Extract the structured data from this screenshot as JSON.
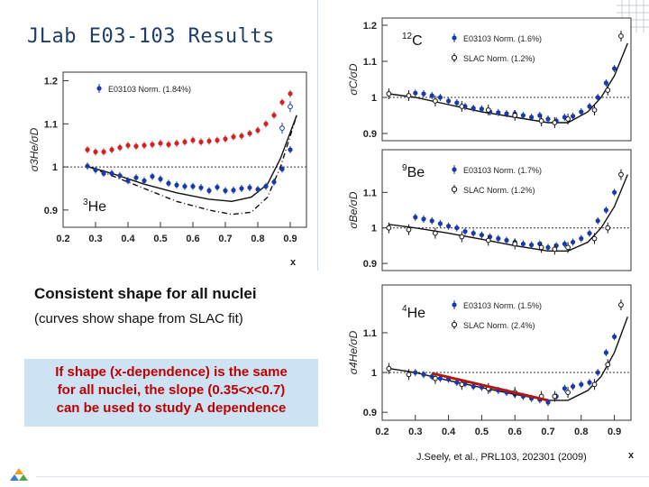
{
  "slide": {
    "title": "JLab E03-103 Results",
    "statement": "Consistent shape for all nuclei",
    "curve_note": "(curves show shape from SLAC fit)",
    "callout": "If shape (x-dependence) is the same\nfor all nuclei, the slope (0.35<x<0.7)\ncan be used to study A dependence",
    "citation": "J.Seely, et al., PRL103, 202301 (2009)",
    "colors": {
      "title": "#1f3d6b",
      "callout_bg": "#cde3f4",
      "callout_text": "#c00000",
      "red_points": "#d42020",
      "blue_points": "#1a3aa8",
      "slope_line": "#b01818"
    }
  },
  "chart_data": [
    {
      "type": "scatter",
      "nucleus_label": "3He",
      "ylabel": "σ3He/σD",
      "xlabel": "x",
      "xlim": [
        0.2,
        0.95
      ],
      "ylim": [
        0.86,
        1.22
      ],
      "xticks": [
        "0.2",
        "0.3",
        "0.4",
        "0.5",
        "0.6",
        "0.7",
        "0.8",
        "0.9"
      ],
      "yticks": [
        "0.9",
        "1",
        "1.1",
        "1.2"
      ],
      "reference_line": 1.0,
      "legend": [
        {
          "label": "E03103 Norm. (1.84%)",
          "marker": "filled",
          "color": "#1a3aa8"
        }
      ],
      "series": [
        {
          "name": "E03103 Norm. (1.84%)",
          "marker": "filled",
          "color": "#1a3aa8",
          "x": [
            0.275,
            0.3,
            0.325,
            0.35,
            0.375,
            0.4,
            0.425,
            0.45,
            0.475,
            0.5,
            0.525,
            0.55,
            0.575,
            0.6,
            0.625,
            0.65,
            0.675,
            0.7,
            0.725,
            0.75,
            0.775,
            0.8,
            0.825,
            0.85,
            0.875,
            0.9
          ],
          "y": [
            1.002,
            0.993,
            0.985,
            0.985,
            0.98,
            0.968,
            0.975,
            0.968,
            0.978,
            0.972,
            0.962,
            0.958,
            0.955,
            0.955,
            0.952,
            0.945,
            0.953,
            0.945,
            0.946,
            0.95,
            0.952,
            0.948,
            0.955,
            0.965,
            0.995,
            1.04
          ]
        },
        {
          "marker": "filled",
          "color": "#d42020",
          "x": [
            0.275,
            0.3,
            0.325,
            0.35,
            0.375,
            0.4,
            0.425,
            0.45,
            0.475,
            0.5,
            0.525,
            0.55,
            0.575,
            0.6,
            0.625,
            0.65,
            0.675,
            0.7,
            0.725,
            0.75,
            0.775,
            0.8,
            0.825,
            0.85,
            0.875,
            0.9
          ],
          "y": [
            1.04,
            1.035,
            1.035,
            1.04,
            1.045,
            1.05,
            1.048,
            1.05,
            1.052,
            1.055,
            1.052,
            1.055,
            1.058,
            1.062,
            1.058,
            1.06,
            1.062,
            1.065,
            1.07,
            1.072,
            1.078,
            1.085,
            1.1,
            1.12,
            1.15,
            1.17
          ]
        },
        {
          "marker": "open",
          "color": "#1a3aa8",
          "x": [
            0.875,
            0.9
          ],
          "y": [
            1.09,
            1.14
          ]
        }
      ],
      "curves": [
        {
          "style": "solid",
          "x": [
            0.28,
            0.35,
            0.45,
            0.55,
            0.65,
            0.72,
            0.78,
            0.83,
            0.87,
            0.92
          ],
          "y": [
            1.0,
            0.985,
            0.96,
            0.94,
            0.925,
            0.92,
            0.93,
            0.96,
            1.02,
            1.12
          ]
        },
        {
          "style": "dashdot",
          "x": [
            0.28,
            0.35,
            0.45,
            0.55,
            0.65,
            0.72,
            0.78,
            0.83,
            0.87,
            0.92
          ],
          "y": [
            1.0,
            0.98,
            0.95,
            0.92,
            0.9,
            0.89,
            0.895,
            0.93,
            1.0,
            1.12
          ]
        }
      ]
    },
    {
      "type": "scatter",
      "nucleus_label": "12C",
      "ylabel": "σC/σD",
      "xlim": [
        0.2,
        0.95
      ],
      "ylim": [
        0.88,
        1.22
      ],
      "yticks": [
        "0.9",
        "1",
        "1.1",
        "1.2"
      ],
      "reference_line": 1.0,
      "legend": [
        {
          "label": "E03103 Norm. (1.6%)",
          "marker": "filled",
          "color": "#1a3aa8"
        },
        {
          "label": "SLAC Norm. (1.2%)",
          "marker": "open",
          "color": "#111111"
        }
      ],
      "series": [
        {
          "name": "E03103 Norm. (1.6%)",
          "marker": "filled",
          "color": "#1a3aa8",
          "x": [
            0.3,
            0.325,
            0.35,
            0.375,
            0.4,
            0.425,
            0.45,
            0.475,
            0.5,
            0.525,
            0.55,
            0.575,
            0.6,
            0.625,
            0.65,
            0.675,
            0.7,
            0.725,
            0.75,
            0.775,
            0.8,
            0.825,
            0.85,
            0.875,
            0.9
          ],
          "y": [
            1.012,
            1.01,
            1.005,
            1.0,
            0.99,
            0.985,
            0.975,
            0.97,
            0.968,
            0.96,
            0.958,
            0.955,
            0.955,
            0.95,
            0.945,
            0.95,
            0.94,
            0.935,
            0.945,
            0.948,
            0.96,
            0.975,
            1.0,
            1.04,
            1.08
          ]
        },
        {
          "name": "SLAC Norm. (1.2%)",
          "marker": "open",
          "color": "#111111",
          "x": [
            0.22,
            0.28,
            0.36,
            0.44,
            0.52,
            0.6,
            0.68,
            0.72,
            0.76,
            0.84,
            0.88,
            0.92
          ],
          "y": [
            1.01,
            1.005,
            0.99,
            0.975,
            0.965,
            0.95,
            0.935,
            0.93,
            0.94,
            0.965,
            1.02,
            1.17
          ]
        }
      ],
      "curves": [
        {
          "style": "solid",
          "x": [
            0.22,
            0.3,
            0.4,
            0.5,
            0.6,
            0.7,
            0.76,
            0.82,
            0.86,
            0.9,
            0.94
          ],
          "y": [
            1.01,
            1.0,
            0.98,
            0.96,
            0.945,
            0.93,
            0.93,
            0.96,
            1.0,
            1.06,
            1.15
          ]
        }
      ]
    },
    {
      "type": "scatter",
      "nucleus_label": "9Be",
      "ylabel": "σBe/σD",
      "xlim": [
        0.2,
        0.95
      ],
      "ylim": [
        0.88,
        1.22
      ],
      "yticks": [
        "0.9",
        "1",
        "1.1"
      ],
      "reference_line": 1.0,
      "legend": [
        {
          "label": "E03103 Norm. (1.7%)",
          "marker": "filled",
          "color": "#1a3aa8"
        },
        {
          "label": "SLAC Norm. (1.2%)",
          "marker": "open",
          "color": "#111111"
        }
      ],
      "series": [
        {
          "name": "E03103 Norm. (1.7%)",
          "marker": "filled",
          "color": "#1a3aa8",
          "x": [
            0.3,
            0.325,
            0.35,
            0.375,
            0.4,
            0.425,
            0.45,
            0.475,
            0.5,
            0.525,
            0.55,
            0.575,
            0.6,
            0.625,
            0.65,
            0.675,
            0.7,
            0.725,
            0.75,
            0.775,
            0.8,
            0.825,
            0.85,
            0.875,
            0.9
          ],
          "y": [
            1.03,
            1.025,
            1.02,
            1.012,
            1.005,
            1.0,
            0.99,
            0.985,
            0.98,
            0.975,
            0.97,
            0.965,
            0.96,
            0.955,
            0.952,
            0.955,
            0.945,
            0.95,
            0.955,
            0.96,
            0.97,
            0.985,
            1.02,
            1.05,
            1.1
          ]
        },
        {
          "name": "SLAC Norm. (1.2%)",
          "marker": "open",
          "color": "#111111",
          "x": [
            0.22,
            0.28,
            0.36,
            0.44,
            0.52,
            0.6,
            0.68,
            0.72,
            0.76,
            0.84,
            0.88,
            0.92
          ],
          "y": [
            1.0,
            0.995,
            0.985,
            0.975,
            0.965,
            0.955,
            0.945,
            0.94,
            0.945,
            0.97,
            1.0,
            1.15
          ]
        }
      ],
      "curves": [
        {
          "style": "solid",
          "x": [
            0.22,
            0.3,
            0.4,
            0.5,
            0.6,
            0.7,
            0.76,
            0.82,
            0.86,
            0.9,
            0.94
          ],
          "y": [
            1.01,
            1.0,
            0.985,
            0.968,
            0.95,
            0.935,
            0.935,
            0.96,
            1.0,
            1.06,
            1.15
          ]
        }
      ]
    },
    {
      "type": "scatter",
      "nucleus_label": "4He",
      "ylabel": "σ4He/σD",
      "xlabel": "x",
      "xlim": [
        0.2,
        0.95
      ],
      "ylim": [
        0.88,
        1.22
      ],
      "xticks": [
        "0.2",
        "0.3",
        "0.4",
        "0.5",
        "0.6",
        "0.7",
        "0.8",
        "0.9"
      ],
      "yticks": [
        "0.9",
        "1",
        "1.1"
      ],
      "reference_line": 1.0,
      "legend": [
        {
          "label": "E03103 Norm. (1.5%)",
          "marker": "filled",
          "color": "#1a3aa8"
        },
        {
          "label": "SLAC Norm. (2.4%)",
          "marker": "open",
          "color": "#111111"
        }
      ],
      "series": [
        {
          "name": "E03103 Norm. (1.5%)",
          "marker": "filled",
          "color": "#1a3aa8",
          "x": [
            0.3,
            0.325,
            0.35,
            0.375,
            0.4,
            0.425,
            0.45,
            0.475,
            0.5,
            0.525,
            0.55,
            0.575,
            0.6,
            0.625,
            0.65,
            0.675,
            0.7,
            0.725,
            0.75,
            0.775,
            0.8,
            0.825,
            0.85,
            0.875,
            0.9
          ],
          "y": [
            1.0,
            0.995,
            0.99,
            0.985,
            0.983,
            0.975,
            0.972,
            0.965,
            0.963,
            0.958,
            0.955,
            0.95,
            0.945,
            0.94,
            0.935,
            0.932,
            0.925,
            0.94,
            0.96,
            0.965,
            0.97,
            0.975,
            1.0,
            1.05,
            1.09
          ]
        },
        {
          "name": "SLAC Norm. (2.4%)",
          "marker": "open",
          "color": "#111111",
          "x": [
            0.22,
            0.28,
            0.36,
            0.44,
            0.52,
            0.6,
            0.68,
            0.72,
            0.76,
            0.84,
            0.88,
            0.92
          ],
          "y": [
            1.01,
            0.995,
            0.985,
            0.97,
            0.96,
            0.95,
            0.94,
            0.94,
            0.95,
            0.97,
            1.02,
            1.17
          ]
        }
      ],
      "curves": [
        {
          "style": "solid",
          "x": [
            0.22,
            0.3,
            0.4,
            0.5,
            0.6,
            0.7,
            0.76,
            0.82,
            0.86,
            0.9,
            0.94
          ],
          "y": [
            1.01,
            1.0,
            0.98,
            0.962,
            0.945,
            0.93,
            0.93,
            0.955,
            0.99,
            1.05,
            1.14
          ]
        }
      ],
      "slope_line": {
        "x": [
          0.35,
          0.7
        ],
        "y": [
          0.998,
          0.93
        ],
        "color": "#b01818"
      }
    }
  ]
}
